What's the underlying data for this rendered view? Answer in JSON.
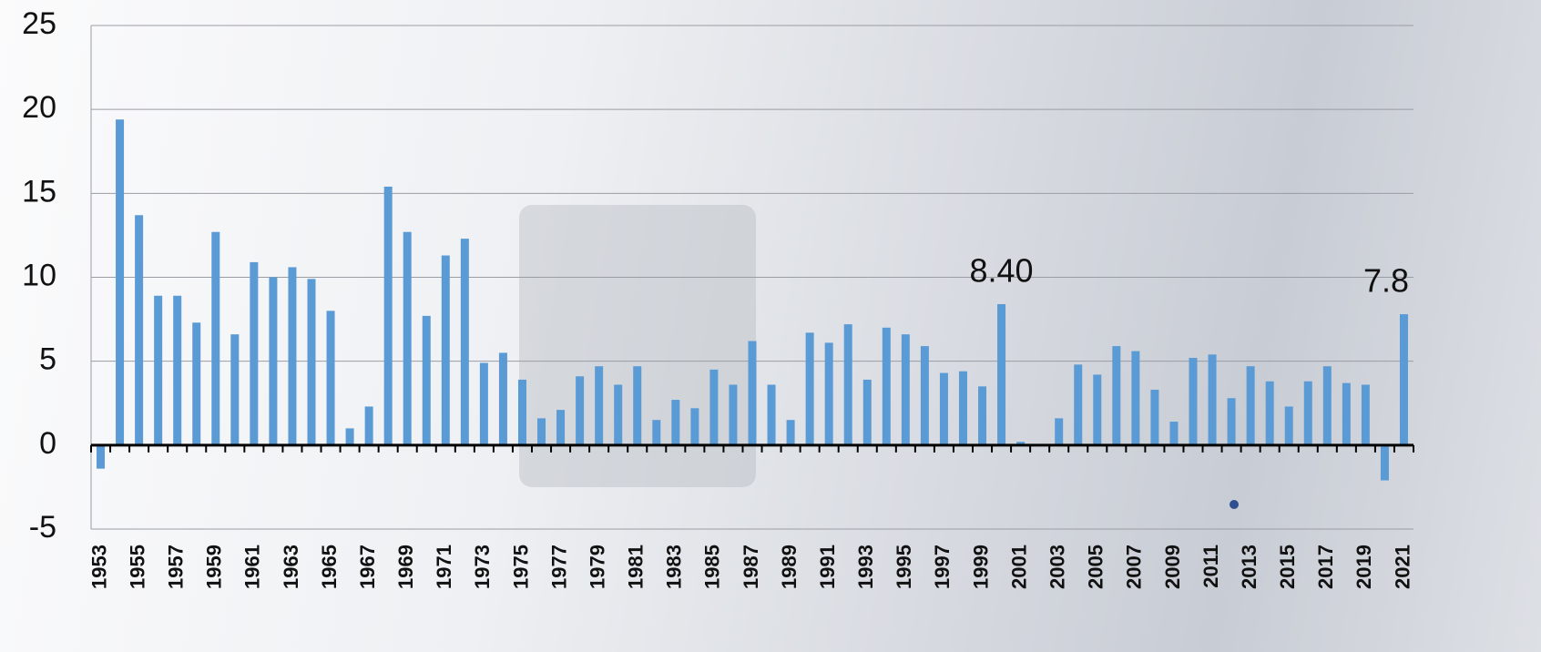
{
  "chart_data": {
    "type": "bar",
    "categories": [
      "1953",
      null,
      "1955",
      null,
      "1957",
      null,
      "1959",
      null,
      "1961",
      null,
      "1963",
      null,
      "1965",
      null,
      "1967",
      null,
      "1969",
      null,
      "1971",
      null,
      "1973",
      null,
      "1975",
      null,
      "1977",
      null,
      "1979",
      null,
      "1981",
      null,
      "1983",
      null,
      "1985",
      null,
      "1987",
      null,
      "1989",
      null,
      "1991",
      null,
      "1993",
      null,
      "1995",
      null,
      "1997",
      null,
      "1999",
      null,
      "2001",
      null,
      "2003",
      null,
      "2005",
      null,
      "2007",
      null,
      "2009",
      null,
      "2011",
      null,
      "2013",
      null,
      "2015",
      null,
      "2017",
      null,
      "2019",
      null,
      "2021"
    ],
    "values": [
      -1.4,
      19.4,
      13.7,
      8.9,
      8.9,
      7.3,
      12.7,
      6.6,
      10.9,
      10.0,
      10.6,
      9.9,
      8.0,
      1.0,
      2.3,
      15.4,
      12.7,
      7.7,
      11.3,
      12.3,
      4.9,
      5.5,
      3.9,
      1.6,
      2.1,
      4.1,
      4.7,
      3.6,
      4.7,
      1.5,
      2.7,
      2.2,
      4.5,
      3.6,
      6.2,
      3.6,
      1.5,
      6.7,
      6.1,
      7.2,
      3.9,
      7.0,
      6.6,
      5.9,
      4.3,
      4.4,
      3.5,
      8.4,
      0.2,
      0,
      1.6,
      4.8,
      4.2,
      5.9,
      5.6,
      3.3,
      1.4,
      5.2,
      5.4,
      2.8,
      4.7,
      3.8,
      2.3,
      3.8,
      4.7,
      3.7,
      3.6,
      -2.1,
      7.8
    ],
    "value_labels": [
      null,
      null,
      null,
      null,
      null,
      null,
      null,
      null,
      null,
      null,
      null,
      null,
      null,
      null,
      null,
      null,
      null,
      null,
      null,
      null,
      null,
      null,
      null,
      null,
      null,
      null,
      null,
      null,
      null,
      null,
      null,
      null,
      null,
      null,
      null,
      null,
      null,
      null,
      null,
      null,
      null,
      null,
      null,
      null,
      null,
      null,
      null,
      "8.40",
      null,
      null,
      null,
      null,
      null,
      null,
      null,
      null,
      null,
      null,
      null,
      null,
      null,
      null,
      null,
      null,
      null,
      null,
      null,
      null,
      "7.8"
    ],
    "color": "#5b9bd5",
    "ylim": [
      -5,
      25
    ],
    "yticks": [
      -5,
      0,
      5,
      10,
      15,
      20,
      25
    ],
    "grid": true
  }
}
